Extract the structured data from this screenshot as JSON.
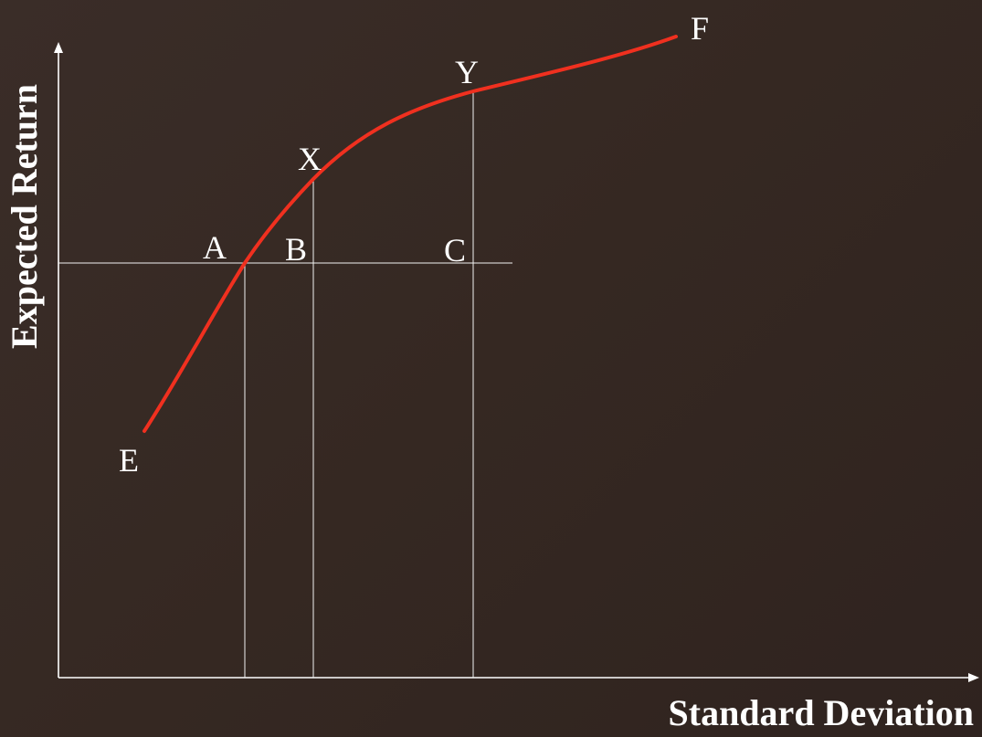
{
  "diagram": {
    "x_axis_title": "Standard Deviation",
    "y_axis_title": "Expected Return",
    "labels": {
      "A": "A",
      "B": "B",
      "C": "C",
      "E": "E",
      "F": "F",
      "X": "X",
      "Y": "Y"
    },
    "colors": {
      "frontier": "#f0301f",
      "axes": "#ffffff",
      "background": "#352822"
    }
  }
}
